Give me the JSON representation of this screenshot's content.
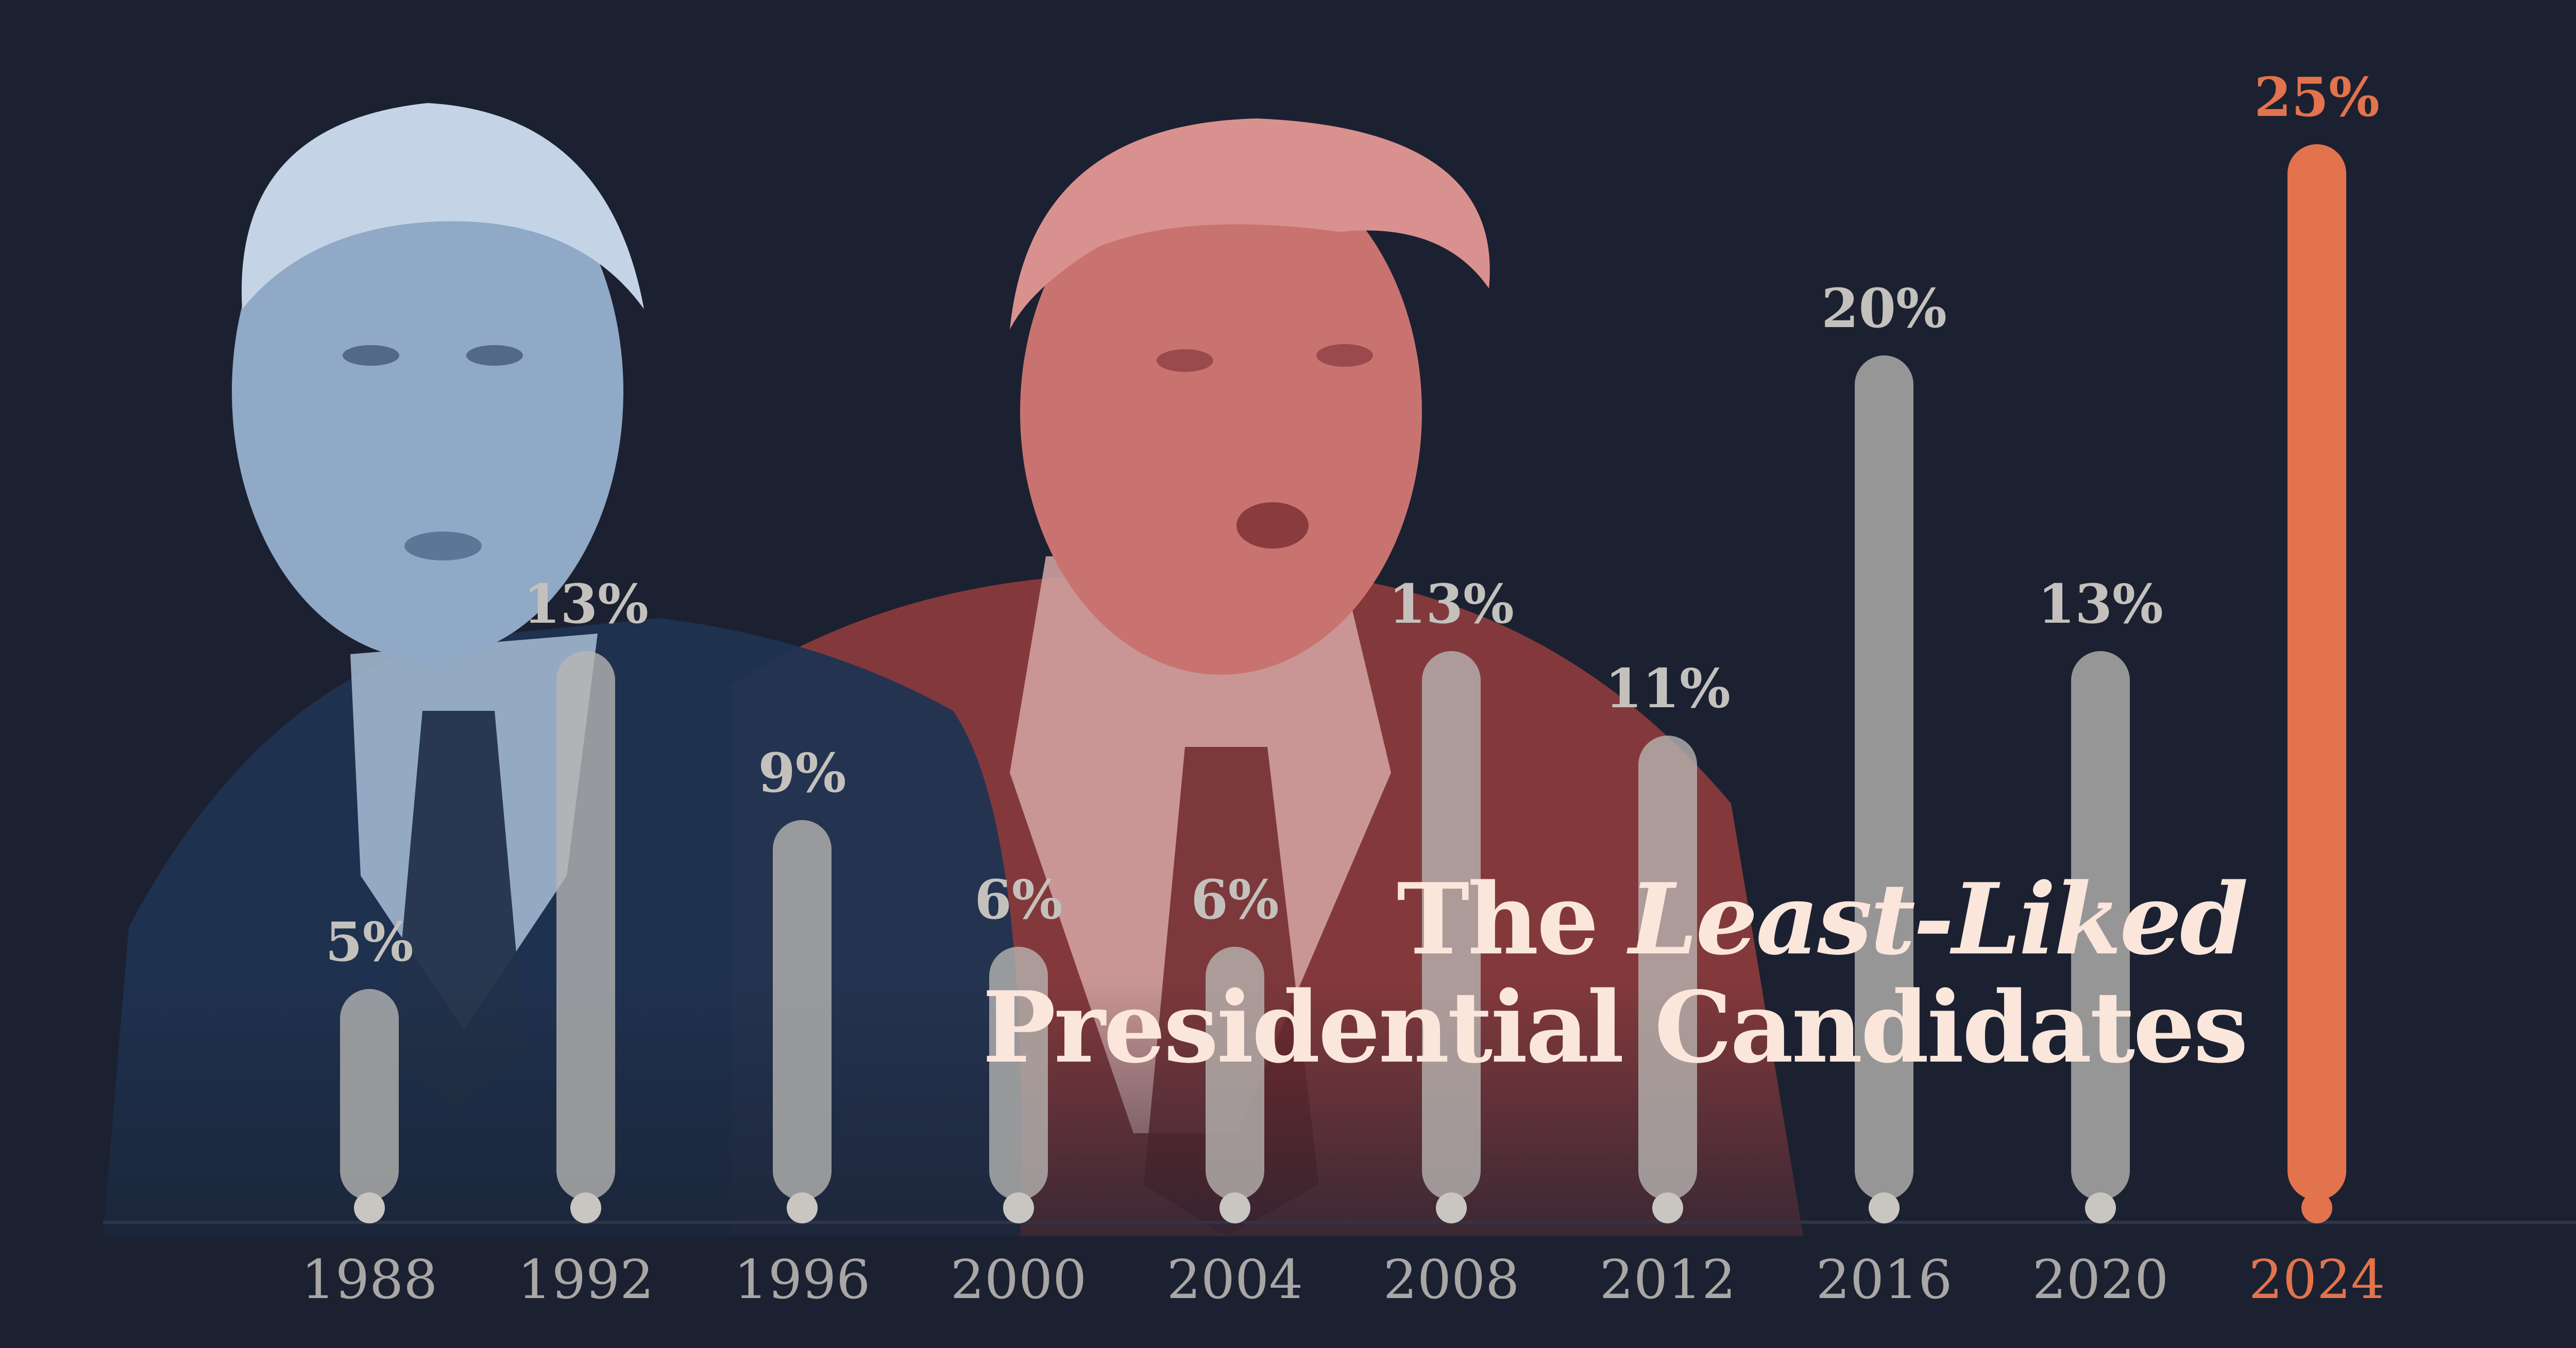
{
  "title": {
    "part1": "The",
    "emphasis": "Least-Liked",
    "line2": "Presidential Candidates"
  },
  "colors": {
    "background": "#1b2131",
    "bar": "#b9b7b4",
    "bar_text": "#c4c1bd",
    "highlight": "#e2734c",
    "title": "#fbe6dc",
    "left_photo_tint": "#7f9bb9",
    "right_photo_tint": "#c86864"
  },
  "images": {
    "left_photo": "man-portrait-blue-tint",
    "right_photo": "man-portrait-red-tint"
  },
  "chart_data": {
    "type": "bar",
    "categories": [
      "1988",
      "1992",
      "1996",
      "2000",
      "2004",
      "2008",
      "2012",
      "2016",
      "2020",
      "2024"
    ],
    "values": [
      5,
      13,
      9,
      6,
      6,
      13,
      11,
      20,
      13,
      25
    ],
    "data_labels": [
      "5%",
      "13%",
      "9%",
      "6%",
      "6%",
      "13%",
      "11%",
      "20%",
      "13%",
      "25%"
    ],
    "unit": "%",
    "highlight_category": "2024",
    "ylim": [
      0,
      25
    ],
    "grid": false,
    "legend": "none",
    "title": "The Least-Liked Presidential Candidates",
    "xlabel": "",
    "ylabel": ""
  }
}
